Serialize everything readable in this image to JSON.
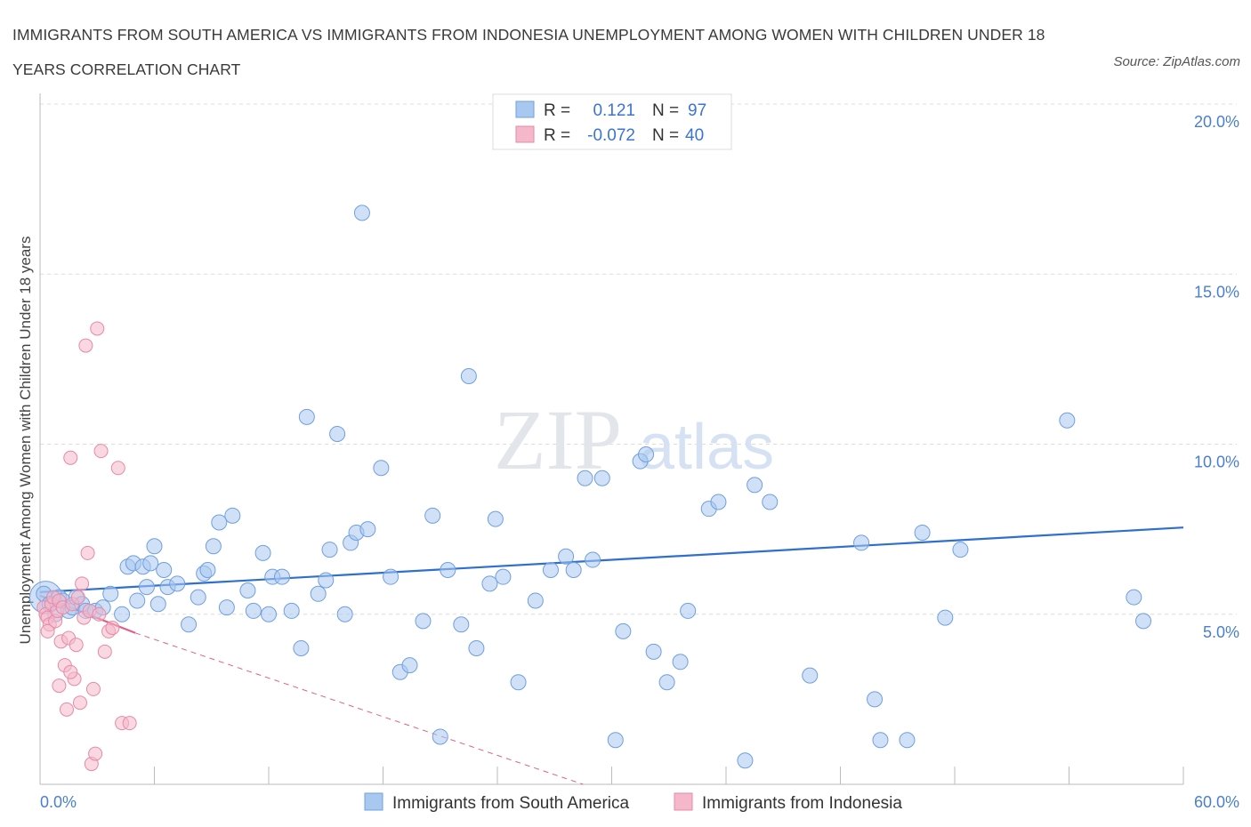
{
  "header": {
    "title": "IMMIGRANTS FROM SOUTH AMERICA VS IMMIGRANTS FROM INDONESIA UNEMPLOYMENT AMONG WOMEN WITH CHILDREN UNDER 18 YEARS CORRELATION CHART",
    "source": "Source: ZipAtlas.com"
  },
  "watermark": {
    "zip": "ZIP",
    "atlas": "atlas"
  },
  "legend": {
    "r_label": "R =",
    "n_label": "N =",
    "rows": [
      {
        "r": "0.121",
        "n": "97"
      },
      {
        "r": "-0.072",
        "n": "40"
      }
    ]
  },
  "chart_data": {
    "type": "scatter",
    "ylabel": "Unemployment Among Women with Children Under 18 years",
    "xlim": [
      0,
      60
    ],
    "ylim": [
      0,
      20
    ],
    "x_tick_labels": [
      "0.0%",
      "60.0%"
    ],
    "y_tick_labels": [
      "5.0%",
      "10.0%",
      "15.0%",
      "20.0%"
    ],
    "y_ticks": [
      5,
      10,
      15,
      20
    ],
    "grid": true,
    "legend_position": "top-center",
    "colors": {
      "south_america_fill": "#a9c8f0",
      "south_america_stroke": "#6f9fe0",
      "south_america_line": "#2f6fd0",
      "indonesia_fill": "#f4b8ca",
      "indonesia_stroke": "#e889a6",
      "indonesia_line": "#e0608a"
    },
    "series": [
      {
        "name": "Immigrants from South America",
        "trend": [
          [
            0,
            5.65
          ],
          [
            60,
            7.55
          ]
        ],
        "points": [
          [
            0.2,
            5.6
          ],
          [
            0.5,
            5.3
          ],
          [
            0.8,
            5.0
          ],
          [
            1.0,
            5.5
          ],
          [
            1.2,
            5.4
          ],
          [
            1.5,
            5.1
          ],
          [
            1.7,
            5.2
          ],
          [
            1.9,
            5.5
          ],
          [
            2.2,
            5.3
          ],
          [
            2.4,
            5.1
          ],
          [
            2.9,
            5.1
          ],
          [
            3.3,
            5.2
          ],
          [
            3.7,
            5.6
          ],
          [
            4.3,
            5.0
          ],
          [
            4.6,
            6.4
          ],
          [
            4.9,
            6.5
          ],
          [
            5.1,
            5.4
          ],
          [
            5.4,
            6.4
          ],
          [
            5.6,
            5.8
          ],
          [
            5.8,
            6.5
          ],
          [
            6.0,
            7.0
          ],
          [
            6.2,
            5.3
          ],
          [
            6.5,
            6.3
          ],
          [
            6.7,
            5.8
          ],
          [
            7.2,
            5.9
          ],
          [
            7.8,
            4.7
          ],
          [
            8.3,
            5.5
          ],
          [
            8.6,
            6.2
          ],
          [
            8.8,
            6.3
          ],
          [
            9.1,
            7.0
          ],
          [
            9.4,
            7.7
          ],
          [
            9.8,
            5.2
          ],
          [
            10.1,
            7.9
          ],
          [
            10.9,
            5.7
          ],
          [
            11.2,
            5.1
          ],
          [
            11.7,
            6.8
          ],
          [
            12.0,
            5.0
          ],
          [
            12.2,
            6.1
          ],
          [
            12.7,
            6.1
          ],
          [
            13.2,
            5.1
          ],
          [
            13.7,
            4.0
          ],
          [
            14.0,
            10.8
          ],
          [
            14.6,
            5.6
          ],
          [
            15.0,
            6.0
          ],
          [
            15.2,
            6.9
          ],
          [
            15.6,
            10.3
          ],
          [
            16.0,
            5.0
          ],
          [
            16.3,
            7.1
          ],
          [
            16.6,
            7.4
          ],
          [
            16.9,
            16.8
          ],
          [
            17.2,
            7.5
          ],
          [
            17.9,
            9.3
          ],
          [
            18.4,
            6.1
          ],
          [
            18.9,
            3.3
          ],
          [
            19.4,
            3.5
          ],
          [
            20.1,
            4.8
          ],
          [
            20.6,
            7.9
          ],
          [
            21.0,
            1.4
          ],
          [
            21.4,
            6.3
          ],
          [
            22.1,
            4.7
          ],
          [
            22.5,
            12.0
          ],
          [
            22.9,
            4.0
          ],
          [
            23.6,
            5.9
          ],
          [
            23.9,
            7.8
          ],
          [
            24.3,
            6.1
          ],
          [
            25.1,
            3.0
          ],
          [
            26.0,
            5.4
          ],
          [
            26.8,
            6.3
          ],
          [
            27.6,
            6.7
          ],
          [
            28.0,
            6.3
          ],
          [
            28.6,
            9.0
          ],
          [
            29.0,
            6.6
          ],
          [
            29.5,
            9.0
          ],
          [
            30.2,
            1.3
          ],
          [
            30.6,
            4.5
          ],
          [
            31.5,
            9.5
          ],
          [
            31.8,
            9.7
          ],
          [
            32.2,
            3.9
          ],
          [
            32.9,
            3.0
          ],
          [
            33.6,
            3.6
          ],
          [
            34.0,
            5.1
          ],
          [
            35.1,
            8.1
          ],
          [
            35.6,
            8.3
          ],
          [
            37.0,
            0.7
          ],
          [
            37.5,
            8.8
          ],
          [
            38.3,
            8.3
          ],
          [
            40.4,
            3.2
          ],
          [
            43.1,
            7.1
          ],
          [
            43.8,
            2.5
          ],
          [
            44.1,
            1.3
          ],
          [
            45.5,
            1.3
          ],
          [
            46.3,
            7.4
          ],
          [
            47.5,
            4.9
          ],
          [
            48.3,
            6.9
          ],
          [
            53.9,
            10.7
          ],
          [
            57.4,
            5.5
          ],
          [
            57.9,
            4.8
          ]
        ]
      },
      {
        "name": "Immigrants from Indonesia",
        "trend_solid": [
          [
            0,
            5.55
          ],
          [
            5.0,
            4.45
          ]
        ],
        "trend_dashed": [
          [
            5.0,
            4.45
          ],
          [
            28.5,
            0
          ]
        ],
        "points": [
          [
            0.2,
            5.2
          ],
          [
            0.3,
            5.0
          ],
          [
            0.4,
            4.9
          ],
          [
            0.5,
            4.7
          ],
          [
            0.6,
            5.3
          ],
          [
            0.7,
            5.5
          ],
          [
            0.8,
            4.8
          ],
          [
            0.9,
            5.1
          ],
          [
            1.0,
            5.4
          ],
          [
            1.1,
            4.2
          ],
          [
            1.2,
            5.2
          ],
          [
            1.3,
            3.5
          ],
          [
            1.4,
            2.2
          ],
          [
            1.5,
            4.3
          ],
          [
            1.6,
            9.6
          ],
          [
            1.7,
            5.3
          ],
          [
            1.8,
            3.1
          ],
          [
            1.9,
            4.1
          ],
          [
            2.0,
            5.5
          ],
          [
            2.1,
            2.4
          ],
          [
            2.2,
            5.9
          ],
          [
            2.3,
            4.9
          ],
          [
            2.4,
            12.9
          ],
          [
            2.5,
            6.8
          ],
          [
            2.6,
            5.1
          ],
          [
            2.7,
            0.6
          ],
          [
            2.8,
            2.8
          ],
          [
            3.0,
            13.4
          ],
          [
            3.1,
            5.0
          ],
          [
            3.2,
            9.8
          ],
          [
            3.4,
            3.9
          ],
          [
            3.6,
            4.5
          ],
          [
            3.8,
            4.6
          ],
          [
            4.1,
            9.3
          ],
          [
            4.3,
            1.8
          ],
          [
            4.7,
            1.8
          ],
          [
            0.4,
            4.5
          ],
          [
            1.0,
            2.9
          ],
          [
            1.6,
            3.3
          ],
          [
            2.9,
            0.9
          ]
        ]
      }
    ]
  },
  "bottom_legend": {
    "items": [
      {
        "label": "Immigrants from South America"
      },
      {
        "label": "Immigrants from Indonesia"
      }
    ]
  }
}
